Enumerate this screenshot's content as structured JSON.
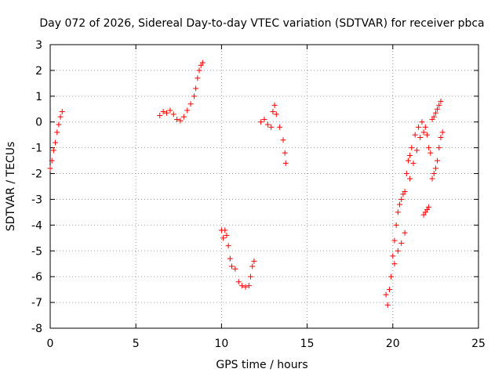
{
  "chart_data": {
    "type": "scatter",
    "title": "Day 072 of 2026, Sidereal Day-to-day VTEC variation (SDTVAR) for receiver pbca",
    "xlabel": "GPS time / hours",
    "ylabel": "SDTVAR / TECUs",
    "xlim": [
      0,
      25
    ],
    "ylim": [
      -8,
      3
    ],
    "xticks": [
      "0",
      "5",
      "10",
      "15",
      "20",
      "25"
    ],
    "yticks": [
      "3",
      "2",
      "1",
      "0",
      "-1",
      "-2",
      "-3",
      "-4",
      "-5",
      "-6",
      "-7",
      "-8"
    ],
    "grid": true,
    "legend": "none",
    "marker": "plus",
    "color": "#ff0000",
    "series": [
      {
        "points": [
          [
            0.0,
            -1.8
          ],
          [
            0.1,
            -1.5
          ],
          [
            0.2,
            -1.1
          ],
          [
            0.3,
            -0.8
          ],
          [
            0.4,
            -0.4
          ],
          [
            0.5,
            -0.1
          ],
          [
            0.6,
            0.2
          ],
          [
            0.7,
            0.4
          ],
          [
            6.4,
            0.25
          ],
          [
            6.6,
            0.4
          ],
          [
            6.8,
            0.35
          ],
          [
            7.0,
            0.45
          ],
          [
            7.2,
            0.3
          ],
          [
            7.4,
            0.1
          ],
          [
            7.6,
            0.05
          ],
          [
            7.8,
            0.2
          ],
          [
            8.0,
            0.45
          ],
          [
            8.2,
            0.7
          ],
          [
            8.4,
            1.0
          ],
          [
            8.5,
            1.3
          ],
          [
            8.6,
            1.7
          ],
          [
            8.7,
            2.0
          ],
          [
            8.8,
            2.2
          ],
          [
            8.9,
            2.3
          ],
          [
            10.0,
            -4.2
          ],
          [
            10.1,
            -4.5
          ],
          [
            10.2,
            -4.2
          ],
          [
            10.3,
            -4.4
          ],
          [
            10.4,
            -4.8
          ],
          [
            10.5,
            -5.3
          ],
          [
            10.6,
            -5.6
          ],
          [
            10.8,
            -5.7
          ],
          [
            11.0,
            -6.2
          ],
          [
            11.2,
            -6.35
          ],
          [
            11.4,
            -6.4
          ],
          [
            11.6,
            -6.35
          ],
          [
            11.7,
            -6.0
          ],
          [
            11.8,
            -5.6
          ],
          [
            11.9,
            -5.4
          ],
          [
            12.3,
            0.0
          ],
          [
            12.5,
            0.1
          ],
          [
            12.7,
            -0.1
          ],
          [
            12.9,
            -0.2
          ],
          [
            13.0,
            0.4
          ],
          [
            13.1,
            0.65
          ],
          [
            13.2,
            0.3
          ],
          [
            13.4,
            -0.2
          ],
          [
            13.6,
            -0.7
          ],
          [
            13.7,
            -1.2
          ],
          [
            13.75,
            -1.6
          ],
          [
            19.6,
            -6.7
          ],
          [
            19.7,
            -7.1
          ],
          [
            19.8,
            -6.5
          ],
          [
            19.9,
            -6.0
          ],
          [
            20.0,
            -5.2
          ],
          [
            20.1,
            -4.6
          ],
          [
            20.2,
            -4.0
          ],
          [
            20.3,
            -3.5
          ],
          [
            20.4,
            -3.2
          ],
          [
            20.5,
            -3.0
          ],
          [
            20.6,
            -2.8
          ],
          [
            20.7,
            -2.7
          ],
          [
            20.8,
            -2.0
          ],
          [
            20.9,
            -1.5
          ],
          [
            21.0,
            -1.3
          ],
          [
            21.1,
            -1.0
          ],
          [
            21.3,
            -0.5
          ],
          [
            21.5,
            -0.2
          ],
          [
            21.7,
            0.0
          ],
          [
            21.9,
            -0.2
          ],
          [
            22.0,
            -0.5
          ],
          [
            22.1,
            -1.0
          ],
          [
            22.2,
            -1.2
          ],
          [
            20.1,
            -5.5
          ],
          [
            20.3,
            -5.0
          ],
          [
            20.5,
            -4.7
          ],
          [
            20.7,
            -4.3
          ],
          [
            21.0,
            -2.2
          ],
          [
            21.2,
            -1.6
          ],
          [
            21.4,
            -1.1
          ],
          [
            21.6,
            -0.6
          ],
          [
            21.8,
            -0.4
          ],
          [
            21.8,
            -3.6
          ],
          [
            21.9,
            -3.5
          ],
          [
            22.0,
            -3.4
          ],
          [
            22.1,
            -3.3
          ],
          [
            22.3,
            0.1
          ],
          [
            22.4,
            0.2
          ],
          [
            22.5,
            0.35
          ],
          [
            22.6,
            0.5
          ],
          [
            22.7,
            0.65
          ],
          [
            22.8,
            0.8
          ],
          [
            22.3,
            -2.2
          ],
          [
            22.4,
            -2.0
          ],
          [
            22.5,
            -1.8
          ],
          [
            22.6,
            -1.5
          ],
          [
            22.7,
            -1.0
          ],
          [
            22.8,
            -0.6
          ],
          [
            22.9,
            -0.4
          ]
        ]
      }
    ]
  }
}
